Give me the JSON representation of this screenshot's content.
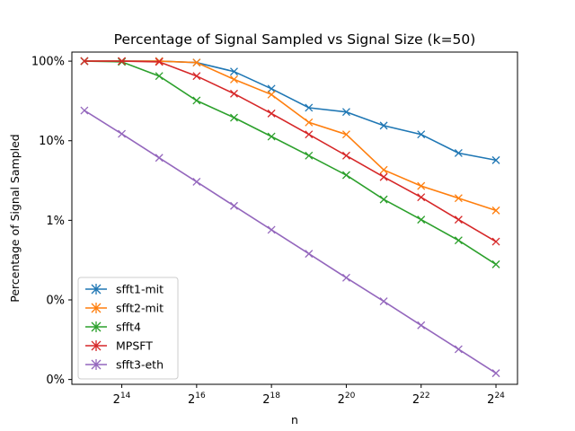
{
  "chart_data": {
    "type": "line",
    "title": "Percentage of Signal Sampled vs Signal Size (k=50)",
    "xlabel": "n",
    "ylabel": "Percentage of Signal Sampled",
    "x_scale": "log2",
    "y_scale": "log10",
    "x_tick_labels": [
      {
        "value": 16384,
        "base": "2",
        "exp": "14"
      },
      {
        "value": 65536,
        "base": "2",
        "exp": "16"
      },
      {
        "value": 262144,
        "base": "2",
        "exp": "18"
      },
      {
        "value": 1048576,
        "base": "2",
        "exp": "20"
      },
      {
        "value": 4194304,
        "base": "2",
        "exp": "22"
      },
      {
        "value": 16777216,
        "base": "2",
        "exp": "24"
      }
    ],
    "y_tick_labels": [
      {
        "value": 1.0,
        "label": "100%"
      },
      {
        "value": 0.1,
        "label": "10%"
      },
      {
        "value": 0.01,
        "label": "1%"
      },
      {
        "value": 0.001,
        "label": "0%"
      },
      {
        "value": 0.0001,
        "label": "0%"
      }
    ],
    "xlim": [
      6500,
      25000000
    ],
    "ylim": [
      8.7e-05,
      1.3
    ],
    "grid": false,
    "legend_position": "lower-left",
    "x": [
      8192,
      16384,
      32768,
      65536,
      131072,
      262144,
      524288,
      1048576,
      2097152,
      4194304,
      8388608,
      16777216
    ],
    "series": [
      {
        "name": "sfft1-mit",
        "color": "#1f77b4",
        "values": [
          1.0,
          1.0,
          1.0,
          0.96,
          0.74,
          0.45,
          0.26,
          0.23,
          0.155,
          0.12,
          0.07,
          0.057
        ]
      },
      {
        "name": "sfft2-mit",
        "color": "#ff7f0e",
        "values": [
          1.0,
          1.0,
          1.0,
          0.96,
          0.59,
          0.38,
          0.17,
          0.12,
          0.043,
          0.027,
          0.019,
          0.0133
        ]
      },
      {
        "name": "sfft4",
        "color": "#2ca02c",
        "values": [
          1.0,
          0.98,
          0.65,
          0.32,
          0.195,
          0.113,
          0.065,
          0.037,
          0.0183,
          0.0102,
          0.0056,
          0.0028
        ]
      },
      {
        "name": "MPSFT",
        "color": "#d62728",
        "values": [
          1.0,
          1.0,
          0.98,
          0.65,
          0.39,
          0.22,
          0.12,
          0.065,
          0.035,
          0.0195,
          0.0102,
          0.0054
        ]
      },
      {
        "name": "sfft3-eth",
        "color": "#9467bd",
        "values": [
          0.24,
          0.122,
          0.061,
          0.0305,
          0.0152,
          0.0076,
          0.0038,
          0.0019,
          0.00096,
          0.00048,
          0.00024,
          0.00012
        ]
      }
    ]
  }
}
